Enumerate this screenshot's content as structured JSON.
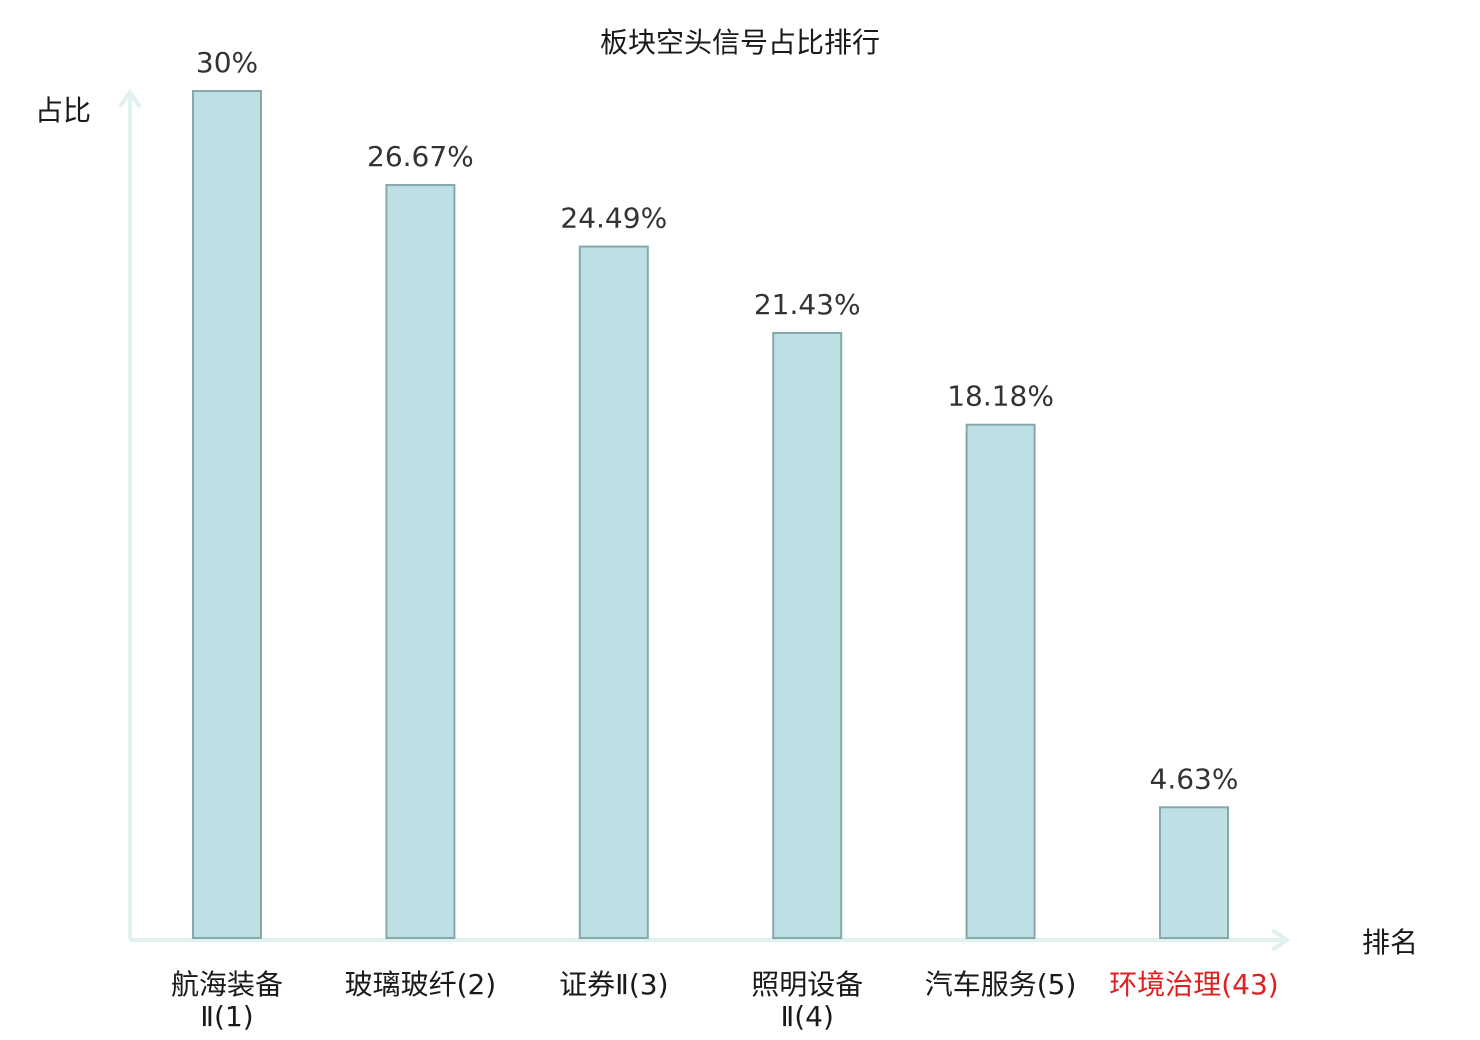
{
  "chart_data": {
    "type": "bar",
    "title": "板块空头信号占比排行",
    "ylabel": "占比",
    "xlabel": "排名",
    "ylim": [
      0,
      30
    ],
    "grid": false,
    "categories": [
      {
        "lines": [
          "航海装备",
          "Ⅱ(1)"
        ],
        "highlight": false
      },
      {
        "lines": [
          "玻璃玻纤(2)"
        ],
        "highlight": false
      },
      {
        "lines": [
          "证券Ⅱ(3)"
        ],
        "highlight": false
      },
      {
        "lines": [
          "照明设备",
          "Ⅱ(4)"
        ],
        "highlight": false
      },
      {
        "lines": [
          "汽车服务(5)"
        ],
        "highlight": false
      },
      {
        "lines": [
          "环境治理(43)"
        ],
        "highlight": true
      }
    ],
    "values": [
      30,
      26.67,
      24.49,
      21.43,
      18.18,
      4.63
    ],
    "value_labels": [
      "30%",
      "26.67%",
      "24.49%",
      "21.43%",
      "18.18%",
      "4.63%"
    ],
    "colors": {
      "bar_fill": "#bce0e3",
      "bar_stroke": "#86a8aa",
      "axis": "#dff2f0",
      "label": "#1a1a1a",
      "highlight": "#e02020"
    }
  }
}
